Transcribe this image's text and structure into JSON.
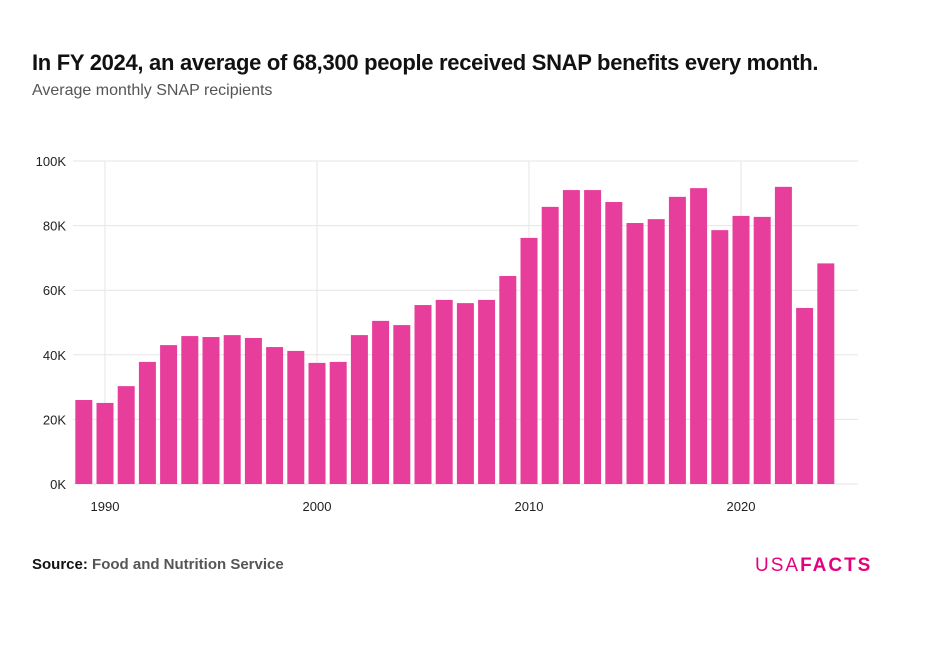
{
  "header": {
    "title": "In FY 2024, an average of 68,300 people received SNAP benefits every month.",
    "subtitle": "Average monthly SNAP recipients"
  },
  "footer": {
    "source_label": "Source:",
    "source_text": "Food and Nutrition Service",
    "logo": "USAFACTS"
  },
  "chart_data": {
    "type": "bar",
    "title": "In FY 2024, an average of 68,300 people received SNAP benefits every month.",
    "subtitle": "Average monthly SNAP recipients",
    "xlabel": "",
    "ylabel": "",
    "ylim": [
      0,
      100000
    ],
    "yticks": [
      0,
      20000,
      40000,
      60000,
      80000,
      100000
    ],
    "ytick_labels": [
      "0K",
      "20K",
      "40K",
      "60K",
      "80K",
      "100K"
    ],
    "xticks": [
      1990,
      2000,
      2010,
      2020
    ],
    "grid": true,
    "color": "#e83e9b",
    "categories": [
      1989,
      1990,
      1991,
      1992,
      1993,
      1994,
      1995,
      1996,
      1997,
      1998,
      1999,
      2000,
      2001,
      2002,
      2003,
      2004,
      2005,
      2006,
      2007,
      2008,
      2009,
      2010,
      2011,
      2012,
      2013,
      2014,
      2015,
      2016,
      2017,
      2018,
      2019,
      2020,
      2021,
      2022,
      2023,
      2024
    ],
    "values": [
      26000,
      25100,
      30300,
      37800,
      43000,
      45800,
      45500,
      46100,
      45200,
      42400,
      41200,
      37500,
      37800,
      46100,
      50500,
      49200,
      55400,
      57000,
      56000,
      57000,
      64400,
      76200,
      85800,
      91000,
      91000,
      87300,
      80800,
      82000,
      88900,
      91600,
      78600,
      83000,
      82700,
      92000,
      54500,
      68300
    ]
  }
}
